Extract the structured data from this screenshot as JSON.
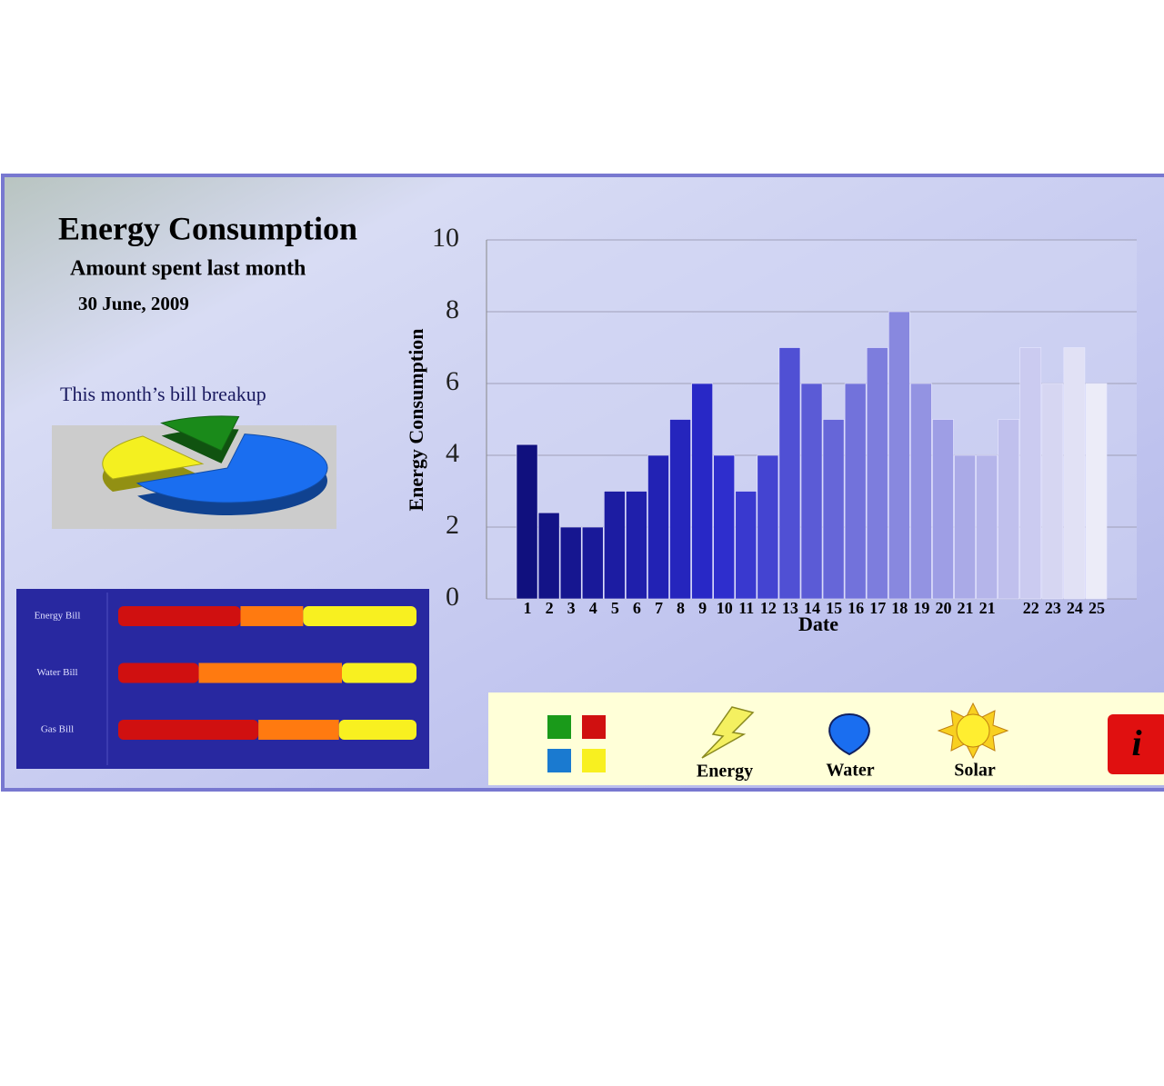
{
  "header": {
    "title": "Energy Consumption",
    "subtitle": "Amount spent last month",
    "date": "30 June, 2009"
  },
  "pie": {
    "type": "pie",
    "title": "This month’s bill breakup",
    "values": [
      65,
      22,
      13
    ],
    "colors": [
      "#1a6ef0",
      "#f4f020",
      "#1a8a1a"
    ]
  },
  "bills": {
    "type": "stacked_bar",
    "categories": [
      "Energy Bill",
      "Water Bill",
      "Gas Bill"
    ],
    "series": [
      {
        "color": "#d01010",
        "values": [
          41,
          27,
          47
        ]
      },
      {
        "color": "#ff7a10",
        "values": [
          21,
          48,
          27
        ]
      },
      {
        "color": "#f8f020",
        "values": [
          38,
          25,
          26
        ]
      }
    ]
  },
  "chart_data": {
    "type": "bar",
    "y_label": "Energy Consumption",
    "x_label": "Date",
    "categories": [
      "1",
      "2",
      "3",
      "4",
      "5",
      "6",
      "7",
      "8",
      "9",
      "10",
      "11",
      "12",
      "13",
      "14",
      "15",
      "16",
      "17",
      "18",
      "19",
      "20",
      "21",
      "21",
      null,
      "22",
      "23",
      "24",
      "25"
    ],
    "values": [
      4.3,
      2.4,
      2,
      2,
      3,
      3,
      4,
      5,
      6,
      4,
      3,
      4,
      7,
      6,
      5,
      6,
      7,
      8,
      6,
      5,
      4,
      4,
      5,
      7,
      6,
      7,
      6
    ],
    "gradient": [
      "#10107e",
      "#2a2acc",
      "#8c8ce0",
      "#ececf8"
    ],
    "ylim": [
      0,
      10
    ],
    "yticks": [
      0,
      2,
      4,
      6,
      8,
      10
    ],
    "grid": true
  },
  "toolbar": {
    "items": [
      "Energy",
      "Water",
      "Solar"
    ]
  }
}
